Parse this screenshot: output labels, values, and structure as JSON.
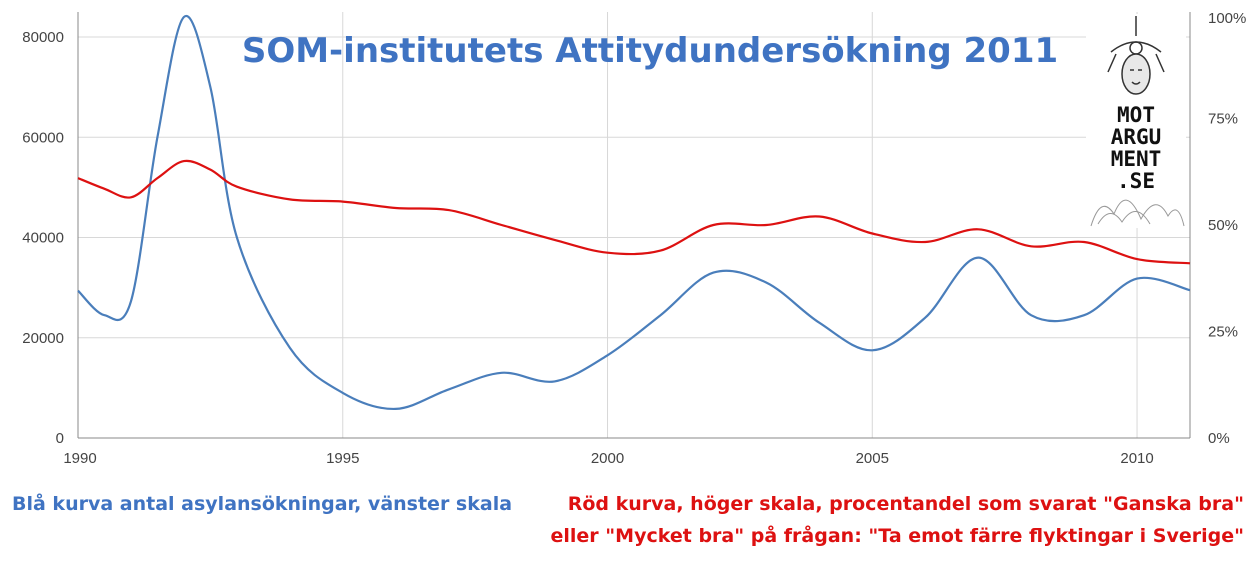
{
  "chart_data": {
    "type": "line",
    "title": "SOM-institutets Attitydundersökning 2011",
    "x": [
      1990,
      1990.5,
      1991,
      1991.5,
      1992,
      1992.5,
      1993,
      1994,
      1995,
      1996,
      1997,
      1998,
      1999,
      2000,
      2001,
      2002,
      2003,
      2004,
      2005,
      2006,
      2007,
      2008,
      2009,
      2010,
      2011
    ],
    "x_ticks": [
      "1990",
      "1995",
      "2000",
      "2005",
      "2010"
    ],
    "xlim": [
      1990,
      2011
    ],
    "left_axis": {
      "ticks": [
        "0",
        "20000",
        "40000",
        "60000",
        "80000"
      ],
      "ylim": [
        0,
        85000
      ]
    },
    "right_axis": {
      "ticks": [
        "0%",
        "25%",
        "50%",
        "75%",
        "100%"
      ],
      "ylim": [
        0,
        100
      ]
    },
    "series": [
      {
        "name": "Blå kurva antal asylansökningar",
        "axis": "left",
        "color": "#4a7ebb",
        "values": [
          29400,
          24500,
          27300,
          60000,
          84000,
          70000,
          40000,
          18000,
          9000,
          5800,
          9700,
          13000,
          11300,
          16500,
          24500,
          33000,
          31000,
          23000,
          17500,
          24000,
          36000,
          24500,
          24500,
          31800,
          29500
        ]
      },
      {
        "name": "Röd kurva procentandel \"Ganska bra\" eller \"Mycket bra\"",
        "axis": "right",
        "color": "#dd1111",
        "values": [
          61,
          58.5,
          56.5,
          61,
          65,
          63,
          59,
          56,
          55.5,
          54,
          53.5,
          50,
          46.5,
          43.5,
          44,
          50,
          50,
          52,
          48,
          46,
          49,
          45,
          46,
          42,
          41
        ]
      }
    ]
  },
  "captions": {
    "left": "Blå kurva antal asylansökningar, vänster skala",
    "right_line1": "Röd kurva, höger skala, procentandel som svarat \"Ganska bra\"",
    "right_line2": "eller \"Mycket bra\" på frågan: \"Ta emot färre flyktingar i Sverige\""
  },
  "logo": {
    "lines": [
      "MOT",
      "ARGU",
      "MENT",
      ".SE"
    ]
  },
  "colors": {
    "blue": "#4a7ebb",
    "red": "#dd1111",
    "title": "#3f73c2",
    "grid": "#d8d8d8"
  }
}
